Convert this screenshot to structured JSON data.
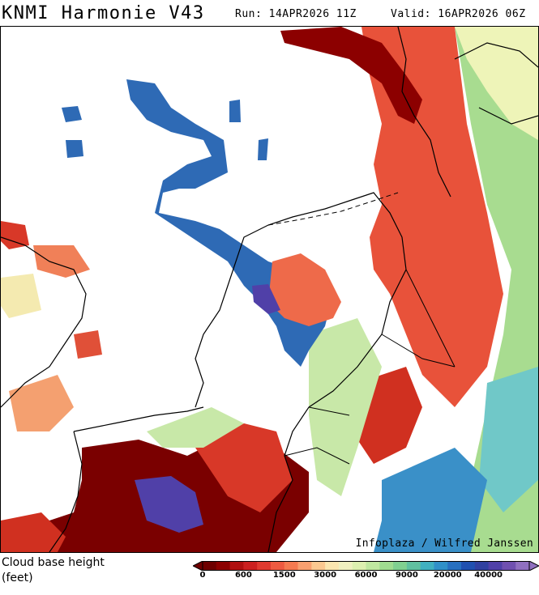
{
  "header": {
    "title": "KNMI Harmonie V43",
    "run": "Run: 14APR2026 11Z",
    "valid": "Valid: 16APR2026 06Z"
  },
  "map": {
    "credit": "Infoplaza / Wilfred Janssen",
    "field": "Cloud base height"
  },
  "legend": {
    "title_line1": "Cloud base height",
    "title_line2": "(feet)",
    "tick_labels": [
      "0",
      "600",
      "1500",
      "3000",
      "6000",
      "9000",
      "20000",
      "40000"
    ],
    "colors": [
      "#6e0000",
      "#8c0000",
      "#b01010",
      "#cc2020",
      "#e03a30",
      "#ee5a40",
      "#f57a50",
      "#f9a070",
      "#fbc890",
      "#fbe6b0",
      "#f0f0c0",
      "#ddf0b0",
      "#c0e8a0",
      "#a0dc90",
      "#80d090",
      "#60c0a0",
      "#40b0c0",
      "#3090c8",
      "#2870c0",
      "#2050b0",
      "#3040a0",
      "#5040a8",
      "#7050b0",
      "#9070c0"
    ]
  }
}
